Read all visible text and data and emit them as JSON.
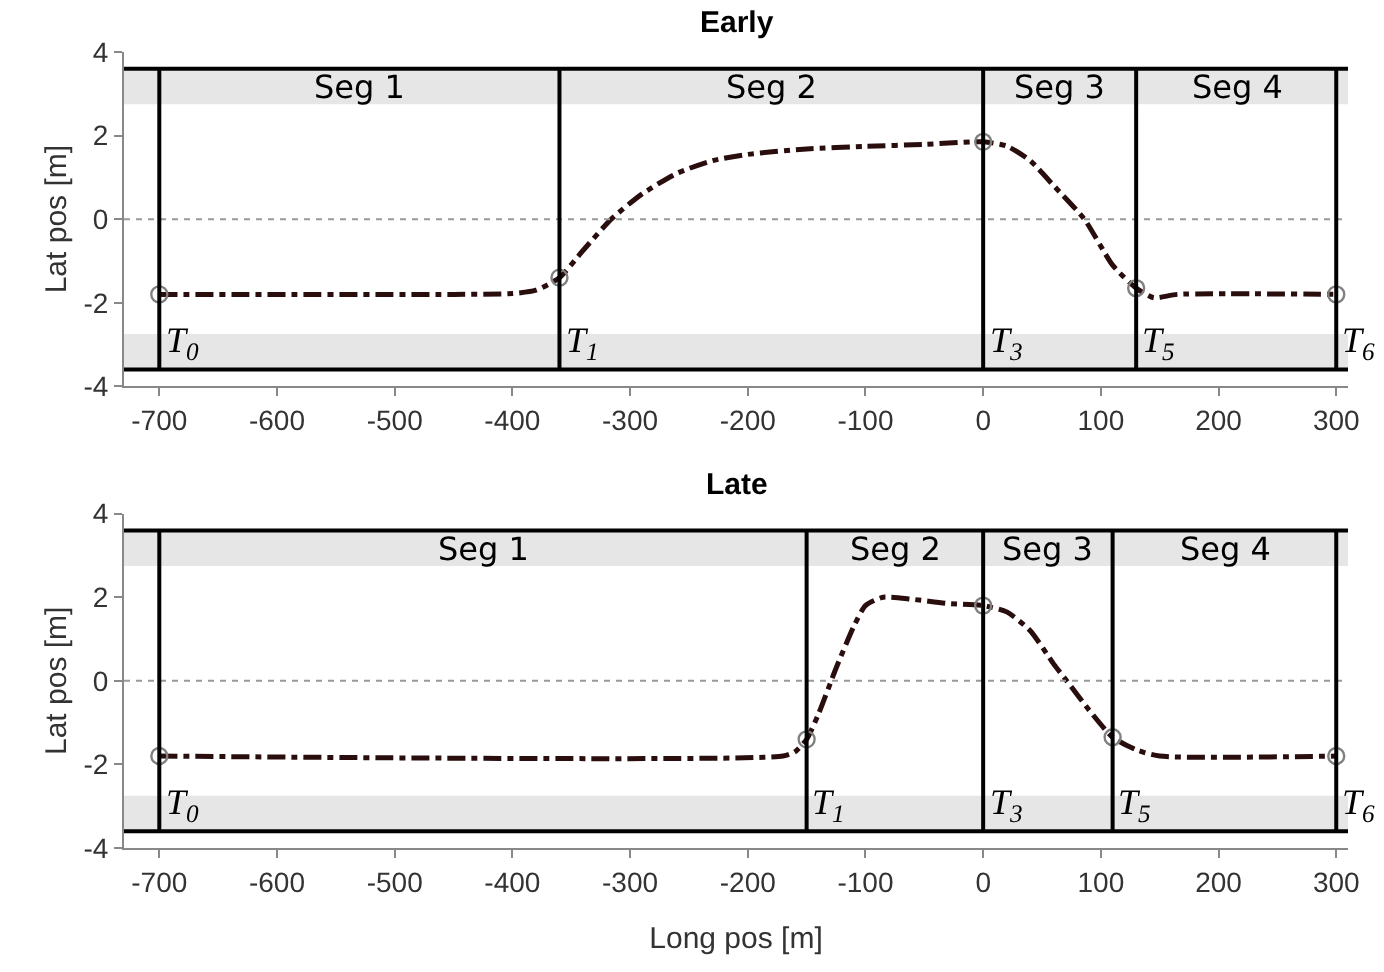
{
  "chart_data": [
    {
      "type": "line",
      "title": "Early",
      "ylabel": "Lat pos [m]",
      "xlim": [
        -730,
        310
      ],
      "ylim": [
        -4,
        4
      ],
      "xticks": [
        -700,
        -600,
        -500,
        -400,
        -300,
        -200,
        -100,
        0,
        100,
        200,
        300
      ],
      "yticks": [
        -4,
        -2,
        0,
        2,
        4
      ],
      "grid": false,
      "series": [
        {
          "color": "#2a0e0e",
          "line_style": "dashed",
          "marker": "none",
          "x": [
            -700,
            -450,
            -400,
            -380,
            -360,
            -340,
            -316,
            -290,
            -260,
            -230,
            -200,
            -150,
            -100,
            -50,
            0,
            20,
            40,
            60,
            86,
            110,
            130,
            145,
            165,
            300
          ],
          "values": [
            -1.8,
            -1.8,
            -1.78,
            -1.7,
            -1.4,
            -0.75,
            0,
            0.6,
            1.1,
            1.4,
            1.55,
            1.68,
            1.74,
            1.79,
            1.85,
            1.75,
            1.4,
            0.8,
            0,
            -1.1,
            -1.65,
            -1.88,
            -1.8,
            -1.8
          ]
        },
        {
          "type": "scatter",
          "color": "#808080",
          "marker": "circle",
          "x": [
            -700,
            -360,
            0,
            130,
            300
          ],
          "values": [
            -1.8,
            -1.4,
            1.85,
            -1.65,
            -1.8
          ]
        }
      ],
      "ref_lines": [
        {
          "axis": "y",
          "value": 0,
          "color": "#999999",
          "line_style": "dotted"
        },
        {
          "axis": "y",
          "value": 3.6,
          "color": "#000000",
          "line_style": "solid"
        },
        {
          "axis": "y",
          "value": -3.6,
          "color": "#000000",
          "line_style": "solid"
        },
        {
          "axis": "x",
          "value": -700,
          "label": "T$_{0}$",
          "color": "#000000",
          "line_style": "solid"
        },
        {
          "axis": "x",
          "value": -360,
          "label": "T$_{1}$",
          "color": "#000000",
          "line_style": "solid"
        },
        {
          "axis": "x",
          "value": 0,
          "label": "T$_{3}$",
          "color": "#000000",
          "line_style": "solid"
        },
        {
          "axis": "x",
          "value": 130,
          "label": "T$_{5}$",
          "color": "#000000",
          "line_style": "solid"
        },
        {
          "axis": "x",
          "value": 300,
          "label": "T$_{6}$",
          "color": "#000000",
          "line_style": "solid"
        }
      ],
      "bands": [
        {
          "axis": "y",
          "from": 2.75,
          "to": 3.6,
          "color": "#e6e6e6"
        },
        {
          "axis": "y",
          "from": -3.6,
          "to": -2.75,
          "color": "#e6e6e6"
        }
      ],
      "annotations": [
        "Seg 1",
        "Seg 2",
        "Seg 3",
        "Seg 4"
      ]
    },
    {
      "type": "line",
      "title": "Late",
      "ylabel": "Lat pos [m]",
      "xlabel": "Long pos [m]",
      "xlim": [
        -730,
        310
      ],
      "ylim": [
        -4,
        4
      ],
      "xticks": [
        -700,
        -600,
        -500,
        -400,
        -300,
        -200,
        -100,
        0,
        100,
        200,
        300
      ],
      "yticks": [
        -4,
        -2,
        0,
        2,
        4
      ],
      "grid": false,
      "series": [
        {
          "color": "#2a0e0e",
          "line_style": "dashed",
          "marker": "none",
          "x": [
            -700,
            -170,
            -160,
            -150,
            -140,
            -125,
            -110,
            -100,
            -85,
            -60,
            -30,
            0,
            20,
            40,
            60,
            71,
            90,
            110,
            130,
            150,
            300
          ],
          "values": [
            -1.8,
            -1.8,
            -1.7,
            -1.4,
            -0.8,
            0.3,
            1.3,
            1.8,
            2.0,
            1.95,
            1.85,
            1.8,
            1.65,
            1.2,
            0.4,
            0,
            -0.7,
            -1.35,
            -1.65,
            -1.8,
            -1.8
          ]
        },
        {
          "type": "scatter",
          "color": "#808080",
          "marker": "circle",
          "x": [
            -700,
            -150,
            0,
            110,
            300
          ],
          "values": [
            -1.8,
            -1.4,
            1.8,
            -1.35,
            -1.8
          ]
        }
      ],
      "ref_lines": [
        {
          "axis": "y",
          "value": 0,
          "color": "#999999",
          "line_style": "dotted"
        },
        {
          "axis": "y",
          "value": 3.6,
          "color": "#000000",
          "line_style": "solid"
        },
        {
          "axis": "y",
          "value": -3.6,
          "color": "#000000",
          "line_style": "solid"
        },
        {
          "axis": "x",
          "value": -700,
          "label": "T$_{0}$",
          "color": "#000000",
          "line_style": "solid"
        },
        {
          "axis": "x",
          "value": -150,
          "label": "T$_{1}$",
          "color": "#000000",
          "line_style": "solid"
        },
        {
          "axis": "x",
          "value": 0,
          "label": "T$_{3}$",
          "color": "#000000",
          "line_style": "solid"
        },
        {
          "axis": "x",
          "value": 110,
          "label": "T$_{5}$",
          "color": "#000000",
          "line_style": "solid"
        },
        {
          "axis": "x",
          "value": 300,
          "label": "T$_{6}$",
          "color": "#000000",
          "line_style": "solid"
        }
      ],
      "bands": [
        {
          "axis": "y",
          "from": 2.75,
          "to": 3.6,
          "color": "#e6e6e6"
        },
        {
          "axis": "y",
          "from": -3.6,
          "to": -2.75,
          "color": "#e6e6e6"
        }
      ],
      "annotations": [
        "Seg 1",
        "Seg 2",
        "Seg 3",
        "Seg 4"
      ]
    }
  ]
}
